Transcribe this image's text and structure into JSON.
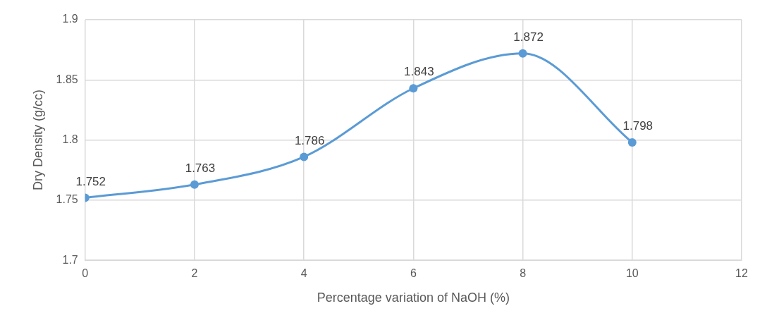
{
  "chart_data": {
    "type": "line",
    "xlabel": "Percentage variation of NaOH (%)",
    "ylabel": "Dry Density (g/cc)",
    "x": [
      0,
      2,
      4,
      6,
      8,
      10
    ],
    "series": [
      {
        "color": "#5b9bd5",
        "values": [
          1.752,
          1.763,
          1.786,
          1.843,
          1.872,
          1.798
        ]
      }
    ],
    "xlim": [
      0,
      12
    ],
    "xticks": [
      0,
      2,
      4,
      6,
      8,
      10,
      12
    ],
    "ylim": [
      1.7,
      1.9
    ],
    "yticks": [
      1.7,
      1.75,
      1.8,
      1.85,
      1.9
    ],
    "grid": true,
    "legend": false,
    "marker": "circle",
    "line_style": "solid",
    "data_labels": true
  }
}
